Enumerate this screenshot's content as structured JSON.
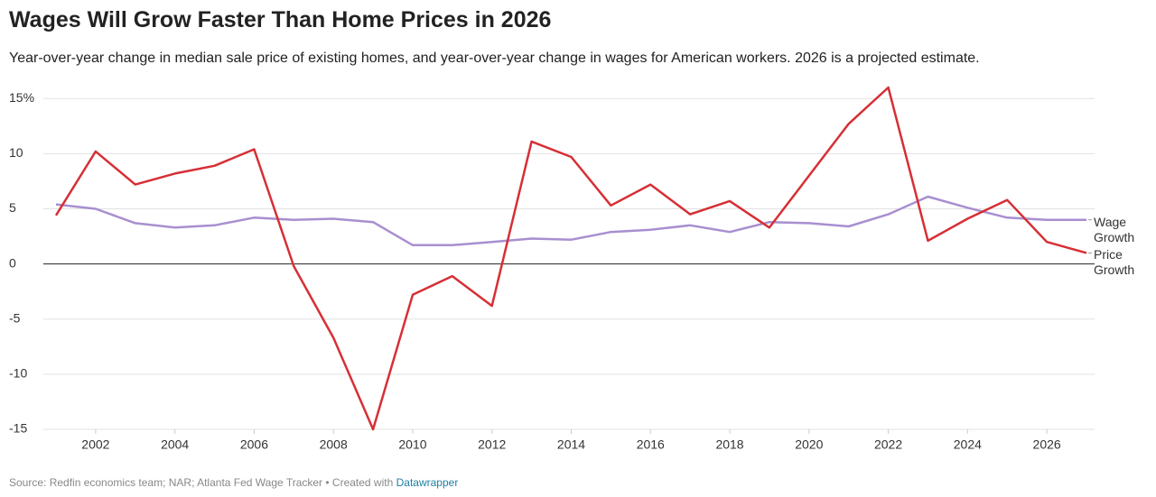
{
  "chart_data": {
    "type": "line",
    "title": "Wages Will Grow Faster Than Home Prices in 2026",
    "subtitle": "Year-over-year change in median sale price of existing homes, and year-over-year change in wages for American workers. 2026 is a projected estimate.",
    "source": "Source: Redfin economics team; NAR; Atlanta Fed Wage Tracker • Created with",
    "credit": "Datawrapper",
    "x": [
      2001,
      2002,
      2003,
      2004,
      2005,
      2006,
      2007,
      2008,
      2009,
      2010,
      2011,
      2012,
      2013,
      2014,
      2015,
      2016,
      2017,
      2018,
      2019,
      2020,
      2021,
      2022,
      2023,
      2024,
      2025,
      2026,
      2027
    ],
    "series": [
      {
        "name": "Wage Growth",
        "color": "#a88fd0",
        "values": [
          5.4,
          5.0,
          3.7,
          3.3,
          3.5,
          4.2,
          4.0,
          4.1,
          3.8,
          1.7,
          1.7,
          2.0,
          2.3,
          2.2,
          2.9,
          3.1,
          3.5,
          2.9,
          3.8,
          3.7,
          3.4,
          4.5,
          6.1,
          5.1,
          4.2,
          4.0,
          4.0
        ]
      },
      {
        "name": "Price Growth",
        "color": "#d62f35",
        "values": [
          4.4,
          10.2,
          7.2,
          8.2,
          8.9,
          10.4,
          -0.2,
          -6.7,
          -15.0,
          -2.8,
          -1.1,
          -3.8,
          11.1,
          9.7,
          5.3,
          7.2,
          4.5,
          5.7,
          3.3,
          8.0,
          12.7,
          16.0,
          2.1,
          4.1,
          5.8,
          2.0,
          1.0
        ]
      }
    ],
    "xlim": [
      2001,
      2027
    ],
    "xticks": [
      2002,
      2004,
      2006,
      2008,
      2010,
      2012,
      2014,
      2016,
      2018,
      2020,
      2022,
      2024,
      2026
    ],
    "ylim": [
      -15,
      16
    ],
    "yticks": [
      {
        "value": 15,
        "label": "15%"
      },
      10,
      5,
      0,
      -5,
      -10,
      -15
    ],
    "grid": true
  }
}
